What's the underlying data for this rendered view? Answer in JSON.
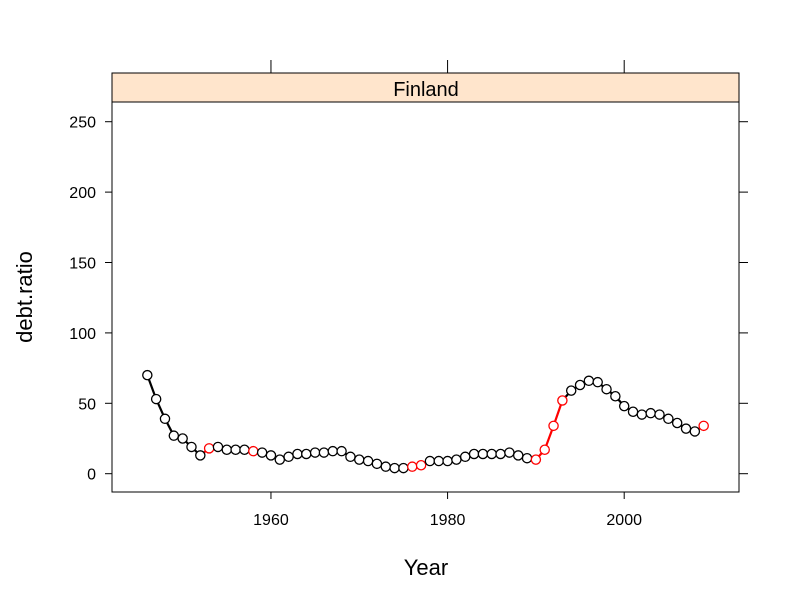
{
  "chart_data": {
    "type": "line",
    "panel_title": "Finland",
    "xlabel": "Year",
    "ylabel": "debt.ratio",
    "xlim": [
      1942,
      2013
    ],
    "ylim": [
      -13,
      264
    ],
    "x_ticks": [
      1960,
      1980,
      2000
    ],
    "y_ticks": [
      0,
      50,
      100,
      150,
      200,
      250
    ],
    "grid": false,
    "colors": {
      "normal": "#000000",
      "highlight": "#ff0000",
      "strip": "#ffe5cc"
    },
    "points": [
      {
        "x": 1946,
        "y": 70,
        "color": "black"
      },
      {
        "x": 1947,
        "y": 53,
        "color": "black"
      },
      {
        "x": 1948,
        "y": 39,
        "color": "black"
      },
      {
        "x": 1949,
        "y": 27,
        "color": "black"
      },
      {
        "x": 1950,
        "y": 25,
        "color": "black"
      },
      {
        "x": 1951,
        "y": 19,
        "color": "black"
      },
      {
        "x": 1952,
        "y": 13,
        "color": "black"
      },
      {
        "x": 1953,
        "y": 18,
        "color": "red"
      },
      {
        "x": 1954,
        "y": 19,
        "color": "black"
      },
      {
        "x": 1955,
        "y": 17,
        "color": "black"
      },
      {
        "x": 1956,
        "y": 17,
        "color": "black"
      },
      {
        "x": 1957,
        "y": 17,
        "color": "black"
      },
      {
        "x": 1958,
        "y": 16,
        "color": "red"
      },
      {
        "x": 1959,
        "y": 15,
        "color": "black"
      },
      {
        "x": 1960,
        "y": 13,
        "color": "black"
      },
      {
        "x": 1961,
        "y": 10,
        "color": "black"
      },
      {
        "x": 1962,
        "y": 12,
        "color": "black"
      },
      {
        "x": 1963,
        "y": 14,
        "color": "black"
      },
      {
        "x": 1964,
        "y": 14,
        "color": "black"
      },
      {
        "x": 1965,
        "y": 15,
        "color": "black"
      },
      {
        "x": 1966,
        "y": 15,
        "color": "black"
      },
      {
        "x": 1967,
        "y": 16,
        "color": "black"
      },
      {
        "x": 1968,
        "y": 16,
        "color": "black"
      },
      {
        "x": 1969,
        "y": 12,
        "color": "black"
      },
      {
        "x": 1970,
        "y": 10,
        "color": "black"
      },
      {
        "x": 1971,
        "y": 9,
        "color": "black"
      },
      {
        "x": 1972,
        "y": 7,
        "color": "black"
      },
      {
        "x": 1973,
        "y": 5,
        "color": "black"
      },
      {
        "x": 1974,
        "y": 4,
        "color": "black"
      },
      {
        "x": 1975,
        "y": 4,
        "color": "black"
      },
      {
        "x": 1976,
        "y": 5,
        "color": "red"
      },
      {
        "x": 1977,
        "y": 6,
        "color": "red"
      },
      {
        "x": 1978,
        "y": 9,
        "color": "black"
      },
      {
        "x": 1979,
        "y": 9,
        "color": "black"
      },
      {
        "x": 1980,
        "y": 9,
        "color": "black"
      },
      {
        "x": 1981,
        "y": 10,
        "color": "black"
      },
      {
        "x": 1982,
        "y": 12,
        "color": "black"
      },
      {
        "x": 1983,
        "y": 14,
        "color": "black"
      },
      {
        "x": 1984,
        "y": 14,
        "color": "black"
      },
      {
        "x": 1985,
        "y": 14,
        "color": "black"
      },
      {
        "x": 1986,
        "y": 14,
        "color": "black"
      },
      {
        "x": 1987,
        "y": 15,
        "color": "black"
      },
      {
        "x": 1988,
        "y": 13,
        "color": "black"
      },
      {
        "x": 1989,
        "y": 11,
        "color": "black"
      },
      {
        "x": 1990,
        "y": 10,
        "color": "red"
      },
      {
        "x": 1991,
        "y": 17,
        "color": "red"
      },
      {
        "x": 1992,
        "y": 34,
        "color": "red"
      },
      {
        "x": 1993,
        "y": 52,
        "color": "red"
      },
      {
        "x": 1994,
        "y": 59,
        "color": "black"
      },
      {
        "x": 1995,
        "y": 63,
        "color": "black"
      },
      {
        "x": 1996,
        "y": 66,
        "color": "black"
      },
      {
        "x": 1997,
        "y": 65,
        "color": "black"
      },
      {
        "x": 1998,
        "y": 60,
        "color": "black"
      },
      {
        "x": 1999,
        "y": 55,
        "color": "black"
      },
      {
        "x": 2000,
        "y": 48,
        "color": "black"
      },
      {
        "x": 2001,
        "y": 44,
        "color": "black"
      },
      {
        "x": 2002,
        "y": 42,
        "color": "black"
      },
      {
        "x": 2003,
        "y": 43,
        "color": "black"
      },
      {
        "x": 2004,
        "y": 42,
        "color": "black"
      },
      {
        "x": 2005,
        "y": 39,
        "color": "black"
      },
      {
        "x": 2006,
        "y": 36,
        "color": "black"
      },
      {
        "x": 2007,
        "y": 32,
        "color": "black"
      },
      {
        "x": 2008,
        "y": 30,
        "color": "black"
      },
      {
        "x": 2009,
        "y": 34,
        "color": "red"
      }
    ]
  }
}
